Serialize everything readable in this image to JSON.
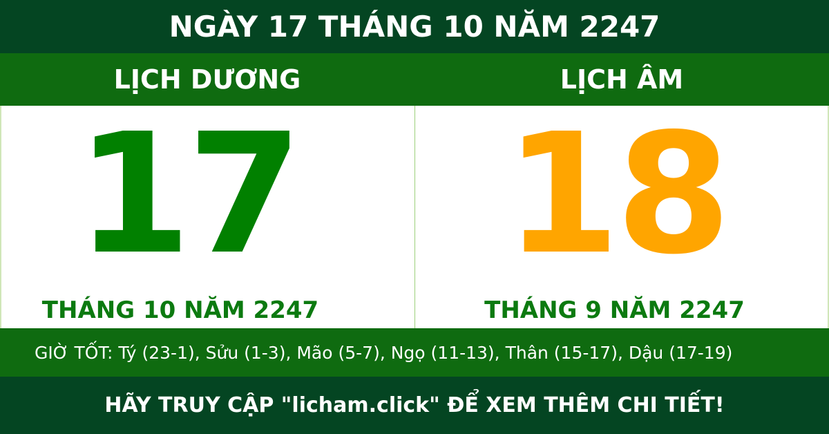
{
  "title": "NGÀY 17 THÁNG 10 NĂM 2247",
  "solar": {
    "label": "LỊCH DƯƠNG",
    "day": "17",
    "month_year": "THÁNG 10 NĂM 2247"
  },
  "lunar": {
    "label": "LỊCH ÂM",
    "day": "18",
    "month_year": "THÁNG 9 NĂM 2247"
  },
  "good_hours": "GIỜ TỐT: Tý (23-1), Sửu (1-3), Mão (5-7), Ngọ (11-13), Thân (15-17), Dậu (17-19)",
  "footer": "HÃY TRUY CẬP \"licham.click\" ĐỂ XEM THÊM CHI TIẾT!",
  "colors": {
    "dark_green": "#044522",
    "green": "#0f6b10",
    "solar_day": "#018000",
    "lunar_day": "#ffa500"
  }
}
